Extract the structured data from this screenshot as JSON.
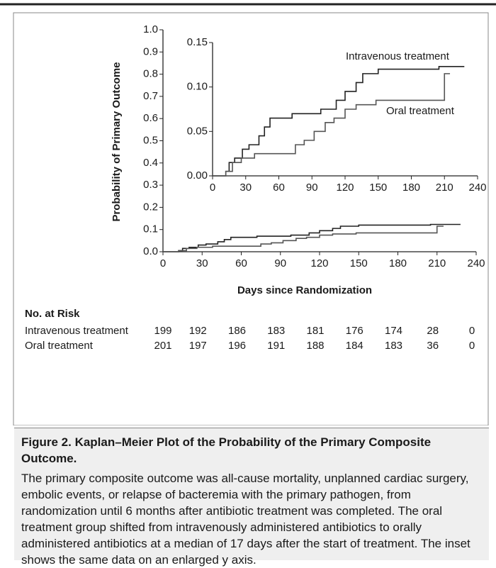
{
  "chart_data": [
    {
      "type": "line",
      "ylabel": "Probability of Primary Outcome",
      "xlabel": "Days since Randomization",
      "xlim": [
        0,
        240
      ],
      "xticks": [
        0,
        30,
        60,
        90,
        120,
        150,
        180,
        210,
        240
      ],
      "ylim": [
        0,
        1
      ],
      "yticks": [
        {
          "value": 0,
          "label": "0.0"
        },
        0.1,
        0.2,
        0.3,
        0.4,
        0.5,
        0.6,
        0.7,
        0.8,
        0.9,
        {
          "value": 1,
          "label": "1.0"
        }
      ],
      "series": [
        {
          "color": "#222222",
          "x": [
            0,
            12,
            12,
            15,
            15,
            20,
            20,
            27,
            27,
            33,
            33,
            42,
            42,
            47,
            47,
            52,
            52,
            72,
            72,
            98,
            98,
            112,
            112,
            120,
            120,
            130,
            130,
            136,
            136,
            150,
            150,
            205,
            205,
            228
          ],
          "values": [
            0,
            0,
            0.005,
            0.005,
            0.015,
            0.015,
            0.02,
            0.02,
            0.03,
            0.03,
            0.035,
            0.035,
            0.045,
            0.045,
            0.055,
            0.055,
            0.065,
            0.065,
            0.07,
            0.07,
            0.075,
            0.075,
            0.085,
            0.085,
            0.095,
            0.095,
            0.105,
            0.105,
            0.115,
            0.115,
            0.12,
            0.12,
            0.123,
            0.123
          ]
        },
        {
          "color": "#555555",
          "x": [
            0,
            12,
            12,
            18,
            18,
            26,
            26,
            38,
            38,
            75,
            75,
            83,
            83,
            92,
            92,
            102,
            102,
            110,
            110,
            120,
            120,
            130,
            130,
            148,
            148,
            210,
            210,
            215
          ],
          "values": [
            0,
            0,
            0.005,
            0.005,
            0.015,
            0.015,
            0.02,
            0.02,
            0.025,
            0.025,
            0.035,
            0.035,
            0.04,
            0.04,
            0.05,
            0.05,
            0.06,
            0.06,
            0.065,
            0.065,
            0.075,
            0.075,
            0.08,
            0.08,
            0.085,
            0.085,
            0.115,
            0.115
          ]
        }
      ]
    },
    {
      "type": "line",
      "xlim": [
        0,
        240
      ],
      "xticks": [
        0,
        30,
        60,
        90,
        120,
        150,
        180,
        210,
        240
      ],
      "ylim": [
        0,
        0.15
      ],
      "yticks": [
        {
          "value": 0,
          "label": "0.00"
        },
        {
          "value": 0.05,
          "label": "0.05"
        },
        {
          "value": 0.1,
          "label": "0.10"
        },
        {
          "value": 0.15,
          "label": "0.15"
        }
      ],
      "series": [
        {
          "name": "Intravenous treatment",
          "color": "#222222",
          "x": [
            0,
            12,
            12,
            15,
            15,
            20,
            20,
            27,
            27,
            33,
            33,
            42,
            42,
            47,
            47,
            52,
            52,
            72,
            72,
            98,
            98,
            112,
            112,
            120,
            120,
            130,
            130,
            136,
            136,
            150,
            150,
            205,
            205,
            228
          ],
          "values": [
            0,
            0,
            0.005,
            0.005,
            0.015,
            0.015,
            0.02,
            0.02,
            0.03,
            0.03,
            0.035,
            0.035,
            0.045,
            0.045,
            0.055,
            0.055,
            0.065,
            0.065,
            0.07,
            0.07,
            0.075,
            0.075,
            0.085,
            0.085,
            0.095,
            0.095,
            0.105,
            0.105,
            0.115,
            0.115,
            0.12,
            0.12,
            0.123,
            0.123
          ]
        },
        {
          "name": "Oral treatment",
          "color": "#555555",
          "x": [
            0,
            12,
            12,
            18,
            18,
            26,
            26,
            38,
            38,
            75,
            75,
            83,
            83,
            92,
            92,
            102,
            102,
            110,
            110,
            120,
            120,
            130,
            130,
            148,
            148,
            210,
            210,
            215
          ],
          "values": [
            0,
            0,
            0.005,
            0.005,
            0.015,
            0.015,
            0.02,
            0.02,
            0.025,
            0.025,
            0.035,
            0.035,
            0.04,
            0.04,
            0.05,
            0.05,
            0.06,
            0.06,
            0.065,
            0.065,
            0.075,
            0.075,
            0.08,
            0.08,
            0.085,
            0.085,
            0.115,
            0.115
          ]
        }
      ]
    }
  ],
  "risk_table": {
    "title": "No. at Risk",
    "rows": [
      {
        "label": "Intravenous treatment",
        "values": [
          199,
          192,
          186,
          183,
          181,
          176,
          174,
          28,
          0
        ]
      },
      {
        "label": "Oral treatment",
        "values": [
          201,
          197,
          196,
          191,
          188,
          184,
          183,
          36,
          0
        ]
      }
    ]
  },
  "caption": {
    "title": "Figure 2. Kaplan–Meier Plot of the Probability of the Primary Composite Outcome.",
    "text": "The primary composite outcome was all-cause mortality, unplanned cardiac surgery, embolic events, or relapse of bacteremia with the primary pathogen, from randomization until 6 months after antibiotic treatment was completed. The oral treatment group shifted from intravenously administered antibiotics to orally administered antibiotics at a median of 17 days after the start of treatment. The inset shows the same data on an enlarged y axis."
  }
}
